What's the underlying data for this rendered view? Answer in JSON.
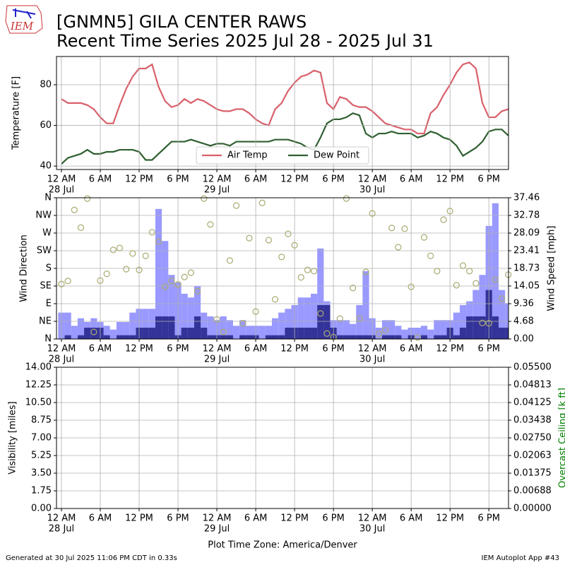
{
  "logo": "IEM",
  "title": "[GNMN5] GILA CENTER RAWS",
  "subtitle": "Recent Time Series 2025 Jul 28 - 2025 Jul 31",
  "x_axis_label": "Plot Time Zone: America/Denver",
  "footer_left": "Generated at 30 Jul 2025 11:06 PM CDT in 0.33s",
  "footer_right": "IEM Autoplot App #43",
  "chart_data": [
    {
      "type": "line",
      "y_label": "Temperature [F]",
      "xlim": [
        -0.76,
        69.03
      ],
      "ylim": [
        38.3,
        93.9
      ],
      "yticks": [
        40,
        60,
        80
      ],
      "grid": true,
      "legend": "lower center",
      "xticks": [
        {
          "value": 0,
          "label": "12 AM"
        },
        {
          "value": 6,
          "label": "6 AM"
        },
        {
          "value": 12,
          "label": "12 PM"
        },
        {
          "value": 18,
          "label": "6 PM"
        },
        {
          "value": 24,
          "label": "12 AM"
        },
        {
          "value": 30,
          "label": "6 AM"
        },
        {
          "value": 36,
          "label": "12 PM"
        },
        {
          "value": 42,
          "label": "6 PM"
        },
        {
          "value": 48,
          "label": "12 AM"
        },
        {
          "value": 54,
          "label": "6 AM"
        },
        {
          "value": 60,
          "label": "12 PM"
        },
        {
          "value": 66,
          "label": "6 PM"
        }
      ],
      "xdates": [
        {
          "value": 0,
          "label": "28 Jul"
        },
        {
          "value": 24,
          "label": "29 Jul"
        },
        {
          "value": 48,
          "label": "30 Jul"
        }
      ],
      "x": [
        0,
        1,
        2,
        3,
        4,
        5,
        6,
        7,
        8,
        9,
        10,
        11,
        12,
        13,
        14,
        15,
        16,
        17,
        18,
        19,
        20,
        21,
        22,
        23,
        24,
        25,
        26,
        27,
        28,
        29,
        30,
        31,
        32,
        33,
        34,
        35,
        36,
        37,
        38,
        39,
        40,
        41,
        42,
        43,
        44,
        45,
        46,
        47,
        48,
        49,
        50,
        51,
        52,
        53,
        54,
        55,
        56,
        57,
        58,
        59,
        60,
        61,
        62,
        63,
        64,
        65,
        66,
        67,
        68,
        69
      ],
      "series": [
        {
          "name": "Air Temp",
          "color": "#d9606a",
          "values": [
            73,
            71,
            71,
            71,
            70,
            68,
            64,
            61,
            61,
            70,
            78,
            84,
            88,
            88,
            90,
            79,
            72,
            69,
            70,
            73,
            71,
            73,
            72,
            70,
            68,
            67,
            67,
            68,
            68,
            66,
            63,
            61,
            60,
            68,
            71,
            77,
            81,
            84,
            85,
            87,
            86,
            71,
            68,
            74,
            73,
            70,
            69,
            69,
            67,
            64,
            61,
            60,
            59,
            58,
            58,
            56,
            56,
            66,
            69,
            75,
            80,
            86,
            90,
            91,
            88,
            71,
            64,
            64,
            67,
            68
          ]
        },
        {
          "name": "Dew Point",
          "color": "#2f5f30",
          "values": [
            41,
            44,
            45,
            46,
            48,
            46,
            46,
            47,
            47,
            48,
            48,
            48,
            47,
            43,
            43,
            46,
            49,
            52,
            52,
            52,
            53,
            52,
            51,
            50,
            51,
            51,
            50,
            52,
            52,
            52,
            52,
            52,
            52,
            53,
            53,
            53,
            52,
            51,
            49,
            48,
            54,
            61,
            63,
            63,
            64,
            66,
            65,
            56,
            54,
            56,
            56,
            57,
            56,
            56,
            56,
            54,
            55,
            57,
            56,
            54,
            53,
            50,
            45,
            47,
            49,
            52,
            57,
            58,
            58,
            55
          ]
        }
      ]
    },
    {
      "type": "bar",
      "y_label": "Wind Direction",
      "y2_label": "Wind Speed [mph]",
      "xlim": [
        -0.76,
        69.03
      ],
      "ylim": [
        0,
        360
      ],
      "y2lim": [
        0,
        37.46
      ],
      "grid": true,
      "yticks": [
        {
          "value": 0,
          "label": "N"
        },
        {
          "value": 45,
          "label": "NE"
        },
        {
          "value": 90,
          "label": "E"
        },
        {
          "value": 135,
          "label": "SE"
        },
        {
          "value": 180,
          "label": "S"
        },
        {
          "value": 225,
          "label": "SW"
        },
        {
          "value": 270,
          "label": "W"
        },
        {
          "value": 315,
          "label": "NW"
        },
        {
          "value": 360,
          "label": "N"
        }
      ],
      "y2ticks": [
        {
          "value": 0,
          "label": "0.00"
        },
        {
          "value": 4.68,
          "label": "4.68"
        },
        {
          "value": 9.36,
          "label": "9.36"
        },
        {
          "value": 14.05,
          "label": "14.05"
        },
        {
          "value": 18.73,
          "label": "18.73"
        },
        {
          "value": 23.41,
          "label": "23.41"
        },
        {
          "value": 28.09,
          "label": "28.09"
        },
        {
          "value": 32.78,
          "label": "32.78"
        },
        {
          "value": 37.46,
          "label": "37.46"
        }
      ],
      "xticks": [
        {
          "value": 0,
          "label": "12 AM"
        },
        {
          "value": 6,
          "label": "6 AM"
        },
        {
          "value": 12,
          "label": "12 PM"
        },
        {
          "value": 18,
          "label": "6 PM"
        },
        {
          "value": 24,
          "label": "12 AM"
        },
        {
          "value": 30,
          "label": "6 AM"
        },
        {
          "value": 36,
          "label": "12 PM"
        },
        {
          "value": 42,
          "label": "6 PM"
        },
        {
          "value": 48,
          "label": "12 AM"
        },
        {
          "value": 54,
          "label": "6 AM"
        },
        {
          "value": 60,
          "label": "12 PM"
        },
        {
          "value": 66,
          "label": "6 PM"
        }
      ],
      "xdates": [
        {
          "value": 0,
          "label": "28 Jul"
        },
        {
          "value": 24,
          "label": "29 Jul"
        },
        {
          "value": 48,
          "label": "30 Jul"
        }
      ],
      "x": [
        0,
        1,
        2,
        3,
        4,
        5,
        6,
        7,
        8,
        9,
        10,
        11,
        12,
        13,
        14,
        15,
        16,
        17,
        18,
        19,
        20,
        21,
        22,
        23,
        24,
        25,
        26,
        27,
        28,
        29,
        30,
        31,
        32,
        33,
        34,
        35,
        36,
        37,
        38,
        39,
        40,
        41,
        42,
        43,
        44,
        45,
        46,
        47,
        48,
        49,
        50,
        51,
        52,
        53,
        54,
        55,
        56,
        57,
        58,
        59,
        60,
        61,
        62,
        63,
        64,
        65,
        66,
        67,
        68,
        69
      ],
      "series": [
        {
          "type": "bar",
          "axis": "y2",
          "color": "#9999ff",
          "values": [
            7,
            7,
            3.5,
            5.5,
            4.5,
            5.5,
            4.5,
            3.5,
            2.5,
            4.5,
            4.5,
            7,
            8,
            8,
            8,
            34.5,
            26,
            17,
            15,
            12,
            11,
            14,
            7,
            6,
            5,
            6,
            5,
            3.5,
            5,
            3.5,
            3.5,
            3.5,
            3.5,
            5.5,
            7,
            8,
            9,
            11,
            11,
            12,
            24,
            10,
            5,
            5,
            5,
            4,
            9,
            18,
            5.5,
            3,
            5,
            5,
            3.5,
            2.5,
            3,
            3,
            3.5,
            2.5,
            5,
            5,
            5,
            7,
            9,
            10,
            13,
            17,
            30,
            36,
            13,
            9.5
          ]
        },
        {
          "type": "bar",
          "axis": "y2",
          "color": "#333399",
          "values": [
            0,
            1,
            0,
            1,
            3,
            3,
            3,
            1,
            0,
            1,
            1,
            1,
            3,
            3,
            3,
            6,
            6,
            6,
            1,
            3,
            3,
            6,
            3,
            1,
            1,
            1,
            1,
            0,
            1,
            1,
            1,
            0,
            1,
            1,
            1,
            3,
            3,
            3,
            3,
            3,
            9,
            9,
            3,
            1,
            1,
            1,
            1,
            1,
            1,
            0,
            1,
            1,
            1,
            0,
            1,
            0,
            1,
            0,
            1,
            1,
            3,
            1,
            3,
            6,
            6,
            6,
            13,
            6,
            3,
            3
          ]
        },
        {
          "type": "scatter",
          "axis": "y",
          "color": "#aaaa70",
          "values": [
            140,
            148,
            329,
            284,
            358,
            18,
            149,
            166,
            227,
            232,
            178,
            218,
            176,
            212,
            272,
            248,
            133,
            148,
            139,
            158,
            169,
            122,
            358,
            292,
            50,
            18,
            200,
            340,
            40,
            257,
            70,
            347,
            252,
            101,
            209,
            268,
            239,
            157,
            176,
            173,
            65,
            14,
            5,
            52,
            358,
            130,
            52,
            171,
            320,
            13,
            22,
            283,
            234,
            281,
            133,
            4,
            259,
            212,
            173,
            304,
            326,
            137,
            187,
            173,
            142,
            41,
            40,
            151,
            103,
            164
          ]
        }
      ]
    },
    {
      "type": "line",
      "y_label": "Visibility [miles]",
      "y2_label": "Overcast Ceiling [k ft]",
      "y2_color": "#008000",
      "xlim": [
        -0.76,
        69.03
      ],
      "ylim": [
        0,
        14
      ],
      "y2lim": [
        0,
        0.055
      ],
      "grid": true,
      "yticks": [
        {
          "value": 0,
          "label": "0.00"
        },
        {
          "value": 1.75,
          "label": "1.75"
        },
        {
          "value": 3.5,
          "label": "3.50"
        },
        {
          "value": 5.25,
          "label": "5.25"
        },
        {
          "value": 7,
          "label": "7.00"
        },
        {
          "value": 8.75,
          "label": "8.75"
        },
        {
          "value": 10.5,
          "label": "10.50"
        },
        {
          "value": 12.25,
          "label": "12.25"
        },
        {
          "value": 14,
          "label": "14.00"
        }
      ],
      "y2ticks": [
        {
          "value": 0,
          "label": "0.00000"
        },
        {
          "value": 0.006875,
          "label": "0.00688"
        },
        {
          "value": 0.01375,
          "label": "0.01375"
        },
        {
          "value": 0.020625,
          "label": "0.02063"
        },
        {
          "value": 0.0275,
          "label": "0.02750"
        },
        {
          "value": 0.034375,
          "label": "0.03438"
        },
        {
          "value": 0.04125,
          "label": "0.04125"
        },
        {
          "value": 0.048125,
          "label": "0.04813"
        },
        {
          "value": 0.055,
          "label": "0.05500"
        }
      ],
      "xticks": [
        {
          "value": 0,
          "label": "12 AM"
        },
        {
          "value": 6,
          "label": "6 AM"
        },
        {
          "value": 12,
          "label": "12 PM"
        },
        {
          "value": 18,
          "label": "6 PM"
        },
        {
          "value": 24,
          "label": "12 AM"
        },
        {
          "value": 30,
          "label": "6 AM"
        },
        {
          "value": 36,
          "label": "12 PM"
        },
        {
          "value": 42,
          "label": "6 PM"
        },
        {
          "value": 48,
          "label": "12 AM"
        },
        {
          "value": 54,
          "label": "6 AM"
        },
        {
          "value": 60,
          "label": "12 PM"
        },
        {
          "value": 66,
          "label": "6 PM"
        }
      ],
      "xdates": [
        {
          "value": 0,
          "label": "28 Jul"
        },
        {
          "value": 24,
          "label": "29 Jul"
        },
        {
          "value": 48,
          "label": "30 Jul"
        }
      ]
    }
  ]
}
